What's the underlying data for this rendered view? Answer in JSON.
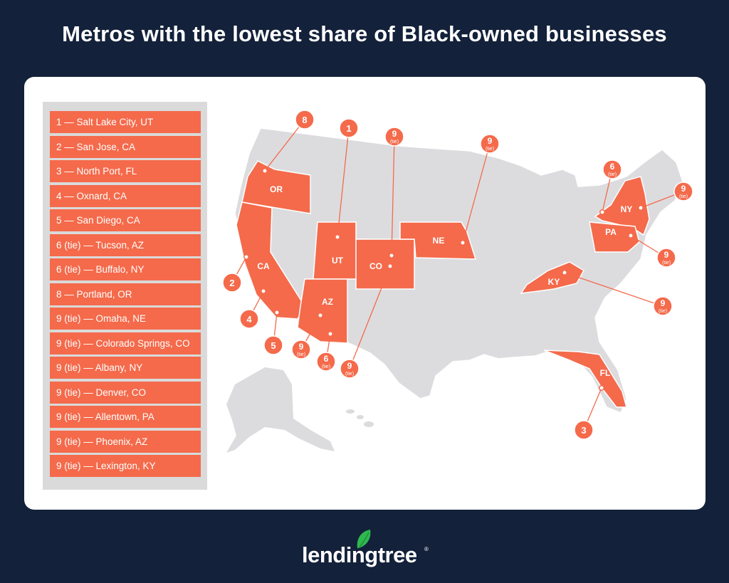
{
  "title": "Metros with the lowest share of Black-owned businesses",
  "ranking": [
    {
      "label": "1 — Salt Lake City, UT"
    },
    {
      "label": "2 — San Jose, CA"
    },
    {
      "label": "3 — North Port, FL"
    },
    {
      "label": "4 — Oxnard, CA"
    },
    {
      "label": "5 — San Diego, CA"
    },
    {
      "label": "6 (tie) — Tucson, AZ"
    },
    {
      "label": "6 (tie) — Buffalo, NY"
    },
    {
      "label": "8 — Portland, OR"
    },
    {
      "label": "9 (tie) — Omaha, NE"
    },
    {
      "label": "9 (tie) — Colorado Springs, CO"
    },
    {
      "label": "9 (tie) — Albany, NY"
    },
    {
      "label": "9 (tie) — Denver, CO"
    },
    {
      "label": "9 (tie) — Allentown, PA"
    },
    {
      "label": "9 (tie) — Phoenix, AZ"
    },
    {
      "label": "9 (tie) — Lexington, KY"
    }
  ],
  "state_labels": [
    "OR",
    "CA",
    "UT",
    "CO",
    "AZ",
    "NE",
    "NY",
    "PA",
    "KY",
    "FL"
  ],
  "markers": [
    {
      "rank": "8",
      "tie": ""
    },
    {
      "rank": "1",
      "tie": ""
    },
    {
      "rank": "9",
      "tie": "(tie)"
    },
    {
      "rank": "9",
      "tie": "(tie)"
    },
    {
      "rank": "6",
      "tie": "(tie)"
    },
    {
      "rank": "9",
      "tie": "(tie)"
    },
    {
      "rank": "2",
      "tie": ""
    },
    {
      "rank": "4",
      "tie": ""
    },
    {
      "rank": "5",
      "tie": ""
    },
    {
      "rank": "9",
      "tie": "(tie)"
    },
    {
      "rank": "6",
      "tie": "(tie)"
    },
    {
      "rank": "9",
      "tie": "(tie)"
    },
    {
      "rank": "9",
      "tie": "(tie)"
    },
    {
      "rank": "9",
      "tie": "(tie)"
    },
    {
      "rank": "3",
      "tie": ""
    }
  ],
  "logo_text": "lendingtree",
  "logo_mark": "®",
  "colors": {
    "background": "#13213a",
    "highlight": "#f46a4b",
    "map_gray": "#dcdcdf",
    "list_panel": "#dadada"
  }
}
